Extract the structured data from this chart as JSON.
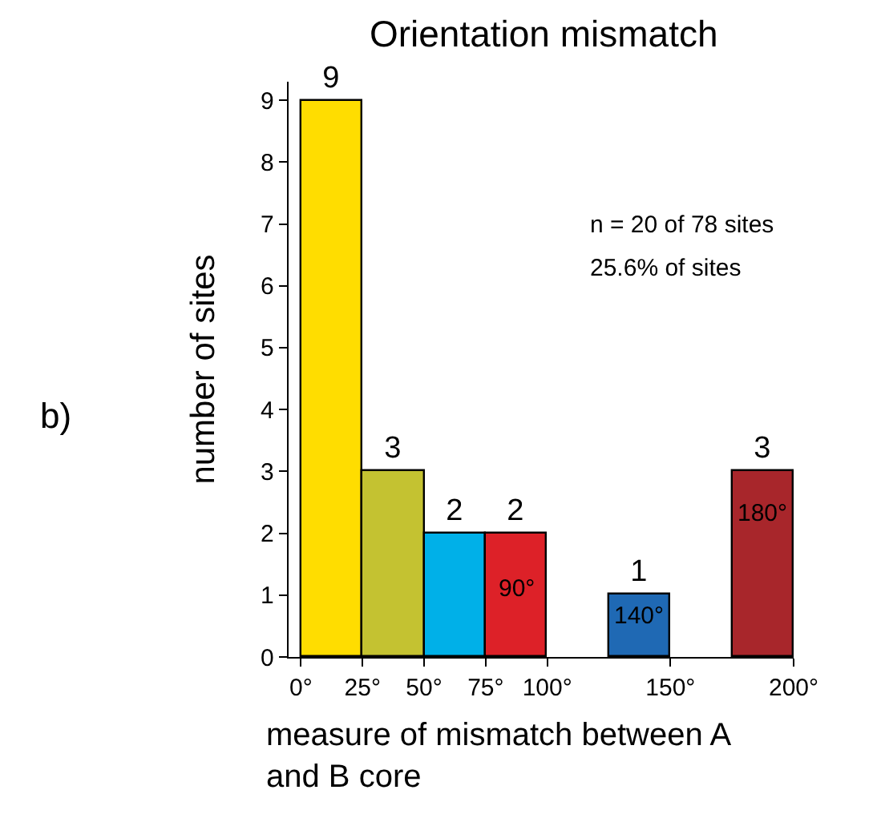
{
  "chart_data": {
    "type": "histogram",
    "title": "Orientation mismatch",
    "xlabel": "measure of mismatch between A and B core",
    "ylabel": "number of sites",
    "bins": [
      0,
      25,
      50,
      75,
      100,
      125,
      150,
      175,
      200
    ],
    "values": [
      9,
      3,
      2,
      2,
      null,
      1,
      null,
      3
    ],
    "colors": [
      "#ffdd00",
      "#c4c231",
      "#00b0e8",
      "#dd2128",
      null,
      "#1f69b4",
      null,
      "#a8262b"
    ],
    "value_labels": [
      "9",
      "3",
      "2",
      "2",
      null,
      "1",
      null,
      "3"
    ],
    "annotations": [
      "90°",
      "140°",
      "180°",
      "n = 20 of 78 sites",
      "25.6% of sites",
      "b)"
    ],
    "xlim": [
      -5,
      200
    ],
    "ylim": [
      0,
      9.3
    ],
    "xticks": [
      {
        "value": 0,
        "label": "0°"
      },
      {
        "value": 25,
        "label": "25°"
      },
      {
        "value": 50,
        "label": "50°"
      },
      {
        "value": 75,
        "label": "75°"
      },
      {
        "value": 100,
        "label": "100°"
      },
      {
        "value": 150,
        "label": "150°"
      },
      {
        "value": 200,
        "label": "200°"
      }
    ],
    "yticks": [
      0,
      1,
      2,
      3,
      4,
      5,
      6,
      7,
      8,
      9
    ]
  }
}
